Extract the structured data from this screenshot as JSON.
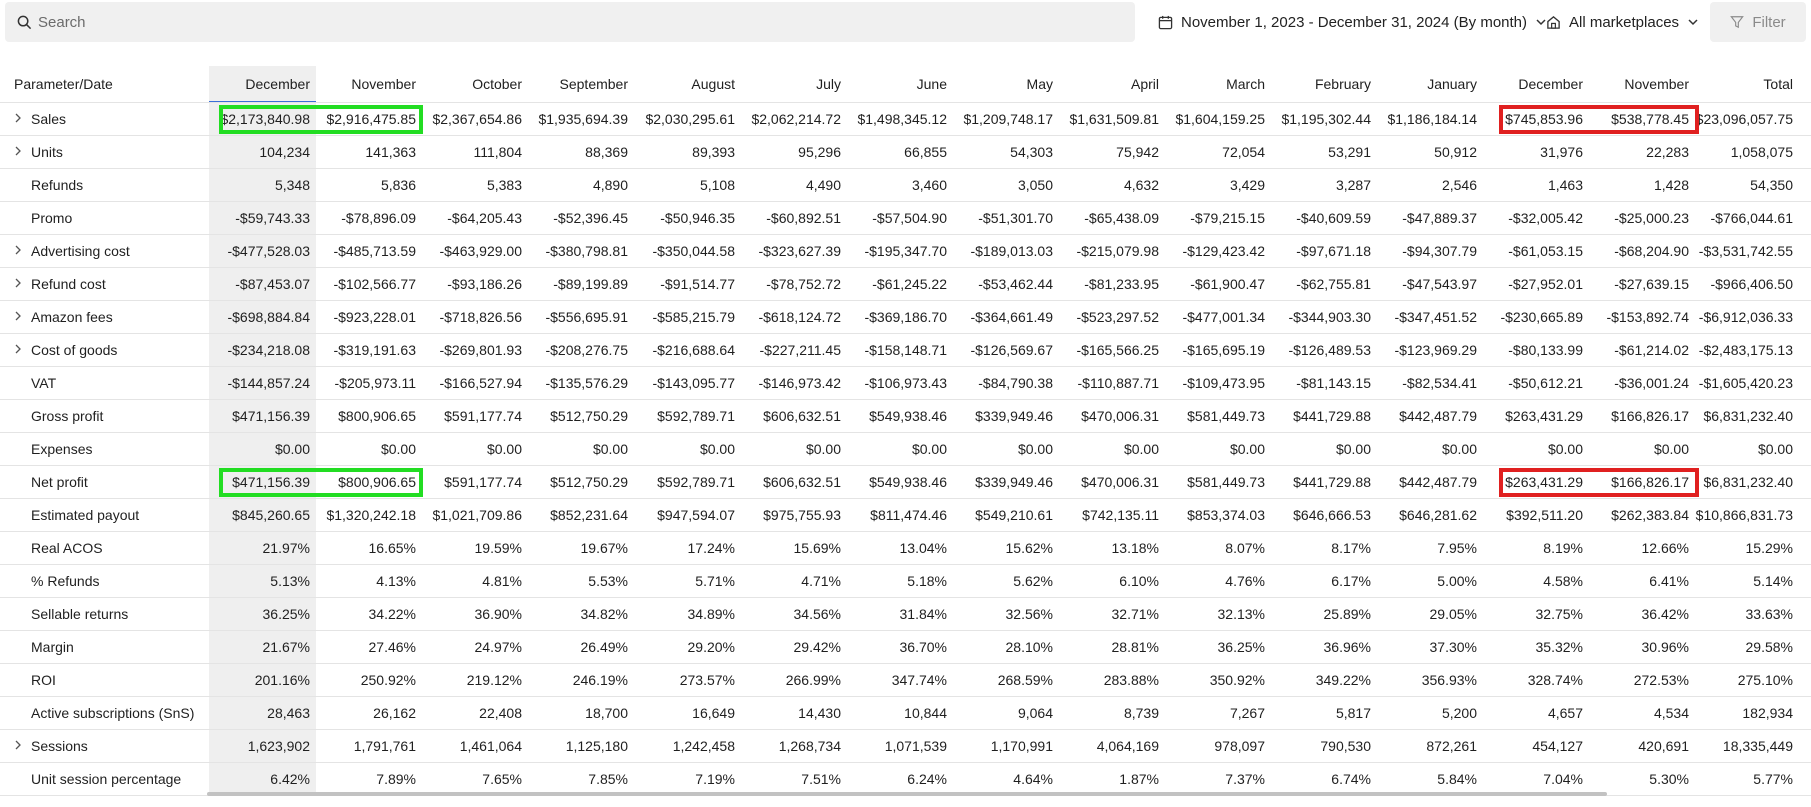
{
  "search": {
    "placeholder": "Search"
  },
  "toolbar": {
    "date_range": "November 1, 2023 - December 31, 2024 (By month)",
    "marketplaces": "All marketplaces",
    "filter": "Filter"
  },
  "table": {
    "param_header": "Parameter/Date",
    "columns": [
      "December",
      "November",
      "October",
      "September",
      "August",
      "July",
      "June",
      "May",
      "April",
      "March",
      "February",
      "January",
      "December",
      "November",
      "Total"
    ],
    "rows": [
      {
        "label": "Sales",
        "expandable": true,
        "values": [
          "$2,173,840.98",
          "$2,916,475.85",
          "$2,367,654.86",
          "$1,935,694.39",
          "$2,030,295.61",
          "$2,062,214.72",
          "$1,498,345.12",
          "$1,209,748.17",
          "$1,631,509.81",
          "$1,604,159.25",
          "$1,195,302.44",
          "$1,186,184.14",
          "$745,853.96",
          "$538,778.45",
          "$23,096,057.75"
        ]
      },
      {
        "label": "Units",
        "expandable": true,
        "values": [
          "104,234",
          "141,363",
          "111,804",
          "88,369",
          "89,393",
          "95,296",
          "66,855",
          "54,303",
          "75,942",
          "72,054",
          "53,291",
          "50,912",
          "31,976",
          "22,283",
          "1,058,075"
        ]
      },
      {
        "label": "Refunds",
        "expandable": false,
        "values": [
          "5,348",
          "5,836",
          "5,383",
          "4,890",
          "5,108",
          "4,490",
          "3,460",
          "3,050",
          "4,632",
          "3,429",
          "3,287",
          "2,546",
          "1,463",
          "1,428",
          "54,350"
        ]
      },
      {
        "label": "Promo",
        "expandable": false,
        "values": [
          "-$59,743.33",
          "-$78,896.09",
          "-$64,205.43",
          "-$52,396.45",
          "-$50,946.35",
          "-$60,892.51",
          "-$57,504.90",
          "-$51,301.70",
          "-$65,438.09",
          "-$79,215.15",
          "-$40,609.59",
          "-$47,889.37",
          "-$32,005.42",
          "-$25,000.23",
          "-$766,044.61"
        ]
      },
      {
        "label": "Advertising cost",
        "expandable": true,
        "values": [
          "-$477,528.03",
          "-$485,713.59",
          "-$463,929.00",
          "-$380,798.81",
          "-$350,044.58",
          "-$323,627.39",
          "-$195,347.70",
          "-$189,013.03",
          "-$215,079.98",
          "-$129,423.42",
          "-$97,671.18",
          "-$94,307.79",
          "-$61,053.15",
          "-$68,204.90",
          "-$3,531,742.55"
        ]
      },
      {
        "label": "Refund cost",
        "expandable": true,
        "values": [
          "-$87,453.07",
          "-$102,566.77",
          "-$93,186.26",
          "-$89,199.89",
          "-$91,514.77",
          "-$78,752.72",
          "-$61,245.22",
          "-$53,462.44",
          "-$81,233.95",
          "-$61,900.47",
          "-$62,755.81",
          "-$47,543.97",
          "-$27,952.01",
          "-$27,639.15",
          "-$966,406.50"
        ]
      },
      {
        "label": "Amazon fees",
        "expandable": true,
        "values": [
          "-$698,884.84",
          "-$923,228.01",
          "-$718,826.56",
          "-$556,695.91",
          "-$585,215.79",
          "-$618,124.72",
          "-$369,186.70",
          "-$364,661.49",
          "-$523,297.52",
          "-$477,001.34",
          "-$344,903.30",
          "-$347,451.52",
          "-$230,665.89",
          "-$153,892.74",
          "-$6,912,036.33"
        ]
      },
      {
        "label": "Cost of goods",
        "expandable": true,
        "values": [
          "-$234,218.08",
          "-$319,191.63",
          "-$269,801.93",
          "-$208,276.75",
          "-$216,688.64",
          "-$227,211.45",
          "-$158,148.71",
          "-$126,569.67",
          "-$165,566.25",
          "-$165,695.19",
          "-$126,489.53",
          "-$123,969.29",
          "-$80,133.99",
          "-$61,214.02",
          "-$2,483,175.13"
        ]
      },
      {
        "label": "VAT",
        "expandable": false,
        "values": [
          "-$144,857.24",
          "-$205,973.11",
          "-$166,527.94",
          "-$135,576.29",
          "-$143,095.77",
          "-$146,973.42",
          "-$106,973.43",
          "-$84,790.38",
          "-$110,887.71",
          "-$109,473.95",
          "-$81,143.15",
          "-$82,534.41",
          "-$50,612.21",
          "-$36,001.24",
          "-$1,605,420.23"
        ]
      },
      {
        "label": "Gross profit",
        "expandable": false,
        "values": [
          "$471,156.39",
          "$800,906.65",
          "$591,177.74",
          "$512,750.29",
          "$592,789.71",
          "$606,632.51",
          "$549,938.46",
          "$339,949.46",
          "$470,006.31",
          "$581,449.73",
          "$441,729.88",
          "$442,487.79",
          "$263,431.29",
          "$166,826.17",
          "$6,831,232.40"
        ]
      },
      {
        "label": "Expenses",
        "expandable": false,
        "values": [
          "$0.00",
          "$0.00",
          "$0.00",
          "$0.00",
          "$0.00",
          "$0.00",
          "$0.00",
          "$0.00",
          "$0.00",
          "$0.00",
          "$0.00",
          "$0.00",
          "$0.00",
          "$0.00",
          "$0.00"
        ]
      },
      {
        "label": "Net profit",
        "expandable": false,
        "values": [
          "$471,156.39",
          "$800,906.65",
          "$591,177.74",
          "$512,750.29",
          "$592,789.71",
          "$606,632.51",
          "$549,938.46",
          "$339,949.46",
          "$470,006.31",
          "$581,449.73",
          "$441,729.88",
          "$442,487.79",
          "$263,431.29",
          "$166,826.17",
          "$6,831,232.40"
        ]
      },
      {
        "label": "Estimated payout",
        "expandable": false,
        "values": [
          "$845,260.65",
          "$1,320,242.18",
          "$1,021,709.86",
          "$852,231.64",
          "$947,594.07",
          "$975,755.93",
          "$811,474.46",
          "$549,210.61",
          "$742,135.11",
          "$853,374.03",
          "$646,666.53",
          "$646,281.62",
          "$392,511.20",
          "$262,383.84",
          "$10,866,831.73"
        ]
      },
      {
        "label": "Real ACOS",
        "expandable": false,
        "values": [
          "21.97%",
          "16.65%",
          "19.59%",
          "19.67%",
          "17.24%",
          "15.69%",
          "13.04%",
          "15.62%",
          "13.18%",
          "8.07%",
          "8.17%",
          "7.95%",
          "8.19%",
          "12.66%",
          "15.29%"
        ]
      },
      {
        "label": "% Refunds",
        "expandable": false,
        "values": [
          "5.13%",
          "4.13%",
          "4.81%",
          "5.53%",
          "5.71%",
          "4.71%",
          "5.18%",
          "5.62%",
          "6.10%",
          "4.76%",
          "6.17%",
          "5.00%",
          "4.58%",
          "6.41%",
          "5.14%"
        ]
      },
      {
        "label": "Sellable returns",
        "expandable": false,
        "values": [
          "36.25%",
          "34.22%",
          "36.90%",
          "34.82%",
          "34.89%",
          "34.56%",
          "31.84%",
          "32.56%",
          "32.71%",
          "32.13%",
          "25.89%",
          "29.05%",
          "32.75%",
          "36.42%",
          "33.63%"
        ]
      },
      {
        "label": "Margin",
        "expandable": false,
        "values": [
          "21.67%",
          "27.46%",
          "24.97%",
          "26.49%",
          "29.20%",
          "29.42%",
          "36.70%",
          "28.10%",
          "28.81%",
          "36.25%",
          "36.96%",
          "37.30%",
          "35.32%",
          "30.96%",
          "29.58%"
        ]
      },
      {
        "label": "ROI",
        "expandable": false,
        "values": [
          "201.16%",
          "250.92%",
          "219.12%",
          "246.19%",
          "273.57%",
          "266.99%",
          "347.74%",
          "268.59%",
          "283.88%",
          "350.92%",
          "349.22%",
          "356.93%",
          "328.74%",
          "272.53%",
          "275.10%"
        ]
      },
      {
        "label": "Active subscriptions (SnS)",
        "expandable": false,
        "values": [
          "28,463",
          "26,162",
          "22,408",
          "18,700",
          "16,649",
          "14,430",
          "10,844",
          "9,064",
          "8,739",
          "7,267",
          "5,817",
          "5,200",
          "4,657",
          "4,534",
          "182,934"
        ]
      },
      {
        "label": "Sessions",
        "expandable": true,
        "values": [
          "1,623,902",
          "1,791,761",
          "1,461,064",
          "1,125,180",
          "1,242,458",
          "1,268,734",
          "1,071,539",
          "1,170,991",
          "4,064,169",
          "978,097",
          "790,530",
          "872,261",
          "454,127",
          "420,691",
          "18,335,449"
        ]
      },
      {
        "label": "Unit session percentage",
        "expandable": false,
        "values": [
          "6.42%",
          "7.89%",
          "7.65%",
          "7.85%",
          "7.19%",
          "7.51%",
          "6.24%",
          "4.64%",
          "1.87%",
          "7.37%",
          "6.74%",
          "5.84%",
          "7.04%",
          "5.30%",
          "5.77%"
        ]
      }
    ]
  },
  "annotations": {
    "green": "#22dd22",
    "red": "#e02020"
  }
}
